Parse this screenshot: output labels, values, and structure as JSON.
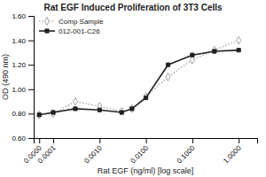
{
  "chart_data": {
    "type": "line",
    "title": "Rat EGF Induced Proliferation of 3T3 Cells",
    "xlabel": "Rat EGF (ng/ml) [log scale]",
    "ylabel": "OD (490 nm)",
    "log": "x",
    "legend": "upper left",
    "x": [
      5e-05,
      0.0001,
      0.0003,
      0.001,
      0.003,
      0.005,
      0.01,
      0.03,
      0.1,
      0.3,
      1.0
    ],
    "series": [
      {
        "name": "Comp Sample",
        "color": "#999999",
        "marker": "diamond",
        "line_style": "dotted",
        "values": [
          0.79,
          0.8,
          0.9,
          0.86,
          0.82,
          0.84,
          0.94,
          1.1,
          1.24,
          1.32,
          1.4
        ]
      },
      {
        "name": "012-001-C26",
        "color": "#222222",
        "marker": "square",
        "line_style": "solid",
        "values": [
          0.79,
          0.81,
          0.84,
          0.83,
          0.81,
          0.84,
          0.93,
          1.2,
          1.28,
          1.31,
          1.32
        ]
      }
    ],
    "xlim": [
      3.8e-05,
      2.5
    ],
    "xticks": [
      {
        "value": 5e-05,
        "label": "0.0000"
      },
      0.0001,
      {
        "value": 0.001,
        "label": "0.0010"
      },
      {
        "value": 0.01,
        "label": "0.0100"
      },
      {
        "value": 0.1,
        "label": "0.1000"
      },
      {
        "value": 1.0,
        "label": "1.0000"
      }
    ],
    "ylim": [
      0.6,
      1.6
    ],
    "yticks": [
      {
        "value": 0.6,
        "label": "0.60"
      },
      {
        "value": 0.8,
        "label": "0.80"
      },
      {
        "value": 1.0,
        "label": "1.00"
      },
      {
        "value": 1.2,
        "label": "1.20"
      },
      {
        "value": 1.4,
        "label": "1.40"
      },
      {
        "value": 1.6,
        "label": "1.60"
      }
    ]
  }
}
